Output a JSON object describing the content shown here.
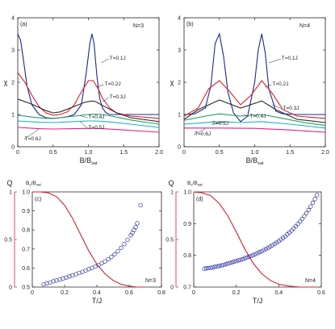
{
  "colors": {
    "T=0.1J": "#1a2a8c",
    "T=0.2J": "#e0202a",
    "T=0.3J": "#2a2a2a",
    "T=0.4J": "#1fa05a",
    "T=0.5J": "#18b0c8",
    "T=0.6J": "#e0208a",
    "Q": "#d42030",
    "circle": "#2a30a0",
    "axis": "#222222"
  },
  "chart_data": [
    {
      "type": "line",
      "panel": "(a)",
      "annotation": "N=3",
      "xlabel": "B/B",
      "xlabel_sub": "sat",
      "ylabel": "χ",
      "xlim": [
        0,
        2
      ],
      "ylim": [
        0,
        4
      ],
      "xticks": [
        "0",
        "0.5",
        "1.0",
        "1.5",
        "2.0"
      ],
      "yticks": [
        "0",
        "1",
        "2",
        "3",
        "4"
      ],
      "series": [
        {
          "name": "T=0.1J",
          "x": [
            0,
            0.04,
            0.08,
            0.13,
            0.2,
            0.3,
            0.4,
            0.5,
            0.6,
            0.7,
            0.8,
            0.9,
            0.97,
            1.02,
            1.05,
            1.08,
            1.12,
            1.16,
            1.2,
            1.25,
            1.3,
            1.4,
            1.6,
            2.0
          ],
          "y": [
            3.5,
            3.3,
            2.7,
            1.9,
            1.3,
            1.0,
            0.9,
            0.88,
            0.9,
            0.93,
            1.0,
            1.3,
            2.3,
            3.2,
            3.5,
            3.2,
            2.2,
            1.5,
            1.2,
            1.05,
            1.0,
            1.0,
            1.0,
            1.0
          ]
        },
        {
          "name": "T=0.2J",
          "x": [
            0,
            0.1,
            0.2,
            0.3,
            0.4,
            0.5,
            0.6,
            0.7,
            0.8,
            0.9,
            1.0,
            1.07,
            1.15,
            1.2,
            1.3,
            1.4,
            1.6,
            2.0
          ],
          "y": [
            2.3,
            2.0,
            1.6,
            1.25,
            1.05,
            0.98,
            1.0,
            1.08,
            1.3,
            1.7,
            2.05,
            2.05,
            1.75,
            1.5,
            1.2,
            1.05,
            0.95,
            0.88
          ]
        },
        {
          "name": "T=0.3J",
          "x": [
            0,
            0.2,
            0.4,
            0.5,
            0.6,
            0.8,
            0.95,
            1.05,
            1.1,
            1.2,
            1.4,
            1.6,
            2.0
          ],
          "y": [
            1.48,
            1.32,
            1.12,
            1.05,
            1.08,
            1.25,
            1.38,
            1.42,
            1.4,
            1.28,
            1.05,
            0.9,
            0.78
          ]
        },
        {
          "name": "T=0.4J",
          "x": [
            0,
            0.2,
            0.4,
            0.5,
            0.6,
            0.8,
            1.0,
            1.1,
            1.2,
            1.4,
            1.6,
            2.0
          ],
          "y": [
            0.98,
            0.92,
            0.88,
            0.88,
            0.9,
            0.95,
            1.0,
            1.01,
            1.0,
            0.92,
            0.83,
            0.7
          ]
        },
        {
          "name": "T=0.5J",
          "x": [
            0,
            0.3,
            0.5,
            0.8,
            1.0,
            1.1,
            1.3,
            1.6,
            2.0
          ],
          "y": [
            0.8,
            0.76,
            0.75,
            0.78,
            0.8,
            0.8,
            0.77,
            0.7,
            0.6
          ]
        },
        {
          "name": "T=0.6J",
          "x": [
            0,
            0.3,
            0.5,
            0.8,
            1.0,
            1.2,
            1.5,
            2.0
          ],
          "y": [
            0.6,
            0.56,
            0.55,
            0.56,
            0.57,
            0.56,
            0.52,
            0.45
          ]
        }
      ],
      "labels": [
        {
          "text": "T=0.1J",
          "x": 1.3,
          "y": 2.75,
          "ax": 1.18,
          "ay": 2.6
        },
        {
          "text": "T=0.2J",
          "x": 1.23,
          "y": 1.95,
          "ax": 1.12,
          "ay": 1.85
        },
        {
          "text": "T=0.3J",
          "x": 1.3,
          "y": 1.55,
          "ax": 1.2,
          "ay": 1.4
        },
        {
          "text": "T=0.4J",
          "x": 1.0,
          "y": 0.92,
          "ax": 0.88,
          "ay": 0.97
        },
        {
          "text": "T=0.5J",
          "x": 1.0,
          "y": 0.6,
          "ax": 0.88,
          "ay": 0.78
        },
        {
          "text": "T=0.6J",
          "x": 0.1,
          "y": 0.25,
          "ax": 0.3,
          "ay": 0.55
        }
      ]
    },
    {
      "type": "line",
      "panel": "(b)",
      "annotation": "N=4",
      "xlabel": "B/B",
      "xlabel_sub": "sat",
      "ylabel": "χ",
      "xlim": [
        0,
        2
      ],
      "ylim": [
        0,
        4
      ],
      "xticks": [
        "0",
        "0.5",
        "1.0",
        "1.5",
        "2.0"
      ],
      "yticks": [
        "0",
        "1",
        "2",
        "3",
        "4"
      ],
      "series": [
        {
          "name": "T=0.1J",
          "x": [
            0,
            0.15,
            0.3,
            0.38,
            0.44,
            0.5,
            0.56,
            0.62,
            0.7,
            0.8,
            0.9,
            1.0,
            1.05,
            1.1,
            1.15,
            1.2,
            1.3,
            1.4,
            1.6,
            2.0
          ],
          "y": [
            1.0,
            1.02,
            1.2,
            1.9,
            3.2,
            3.5,
            2.8,
            1.7,
            1.05,
            0.78,
            0.95,
            2.0,
            3.0,
            3.5,
            2.9,
            1.8,
            1.1,
            1.02,
            1.0,
            1.0
          ]
        },
        {
          "name": "T=0.2J",
          "x": [
            0,
            0.2,
            0.35,
            0.5,
            0.65,
            0.8,
            0.95,
            1.1,
            1.25,
            1.4,
            1.6,
            2.0
          ],
          "y": [
            0.95,
            1.2,
            1.8,
            2.05,
            1.7,
            1.3,
            1.6,
            2.05,
            1.65,
            1.15,
            0.95,
            0.88
          ]
        },
        {
          "name": "T=0.3J",
          "x": [
            0,
            0.2,
            0.5,
            0.8,
            1.1,
            1.3,
            1.6,
            2.0
          ],
          "y": [
            0.85,
            1.15,
            1.45,
            1.2,
            1.42,
            1.15,
            0.85,
            0.75
          ]
        },
        {
          "name": "T=0.4J",
          "x": [
            0,
            0.3,
            0.5,
            0.8,
            1.1,
            1.4,
            1.7,
            2.0
          ],
          "y": [
            0.82,
            0.95,
            1.02,
            0.95,
            1.0,
            0.88,
            0.75,
            0.66
          ]
        },
        {
          "name": "T=0.5J",
          "x": [
            0,
            0.5,
            0.8,
            1.1,
            1.5,
            2.0
          ],
          "y": [
            0.7,
            0.78,
            0.75,
            0.78,
            0.7,
            0.58
          ]
        },
        {
          "name": "T=0.6J",
          "x": [
            0,
            0.5,
            1.0,
            1.5,
            2.0
          ],
          "y": [
            0.58,
            0.58,
            0.57,
            0.52,
            0.45
          ]
        }
      ],
      "labels": [
        {
          "text": "T=0.1J",
          "x": 1.38,
          "y": 2.75,
          "ax": 1.2,
          "ay": 2.6
        },
        {
          "text": "T=0.2J",
          "x": 1.25,
          "y": 1.95,
          "ax": 1.14,
          "ay": 1.85
        },
        {
          "text": "T=0.3J",
          "x": 1.4,
          "y": 1.2,
          "ax": 1.25,
          "ay": 1.3
        },
        {
          "text": "T=0.4J",
          "x": 0.93,
          "y": 0.95,
          "ax": 0.85,
          "ay": 1.0
        },
        {
          "text": "T=0.5J",
          "x": 0.4,
          "y": 0.72,
          "ax": 0.6,
          "ay": 0.78
        },
        {
          "text": "T=0.6J",
          "x": 0.15,
          "y": 0.4,
          "ax": 0.3,
          "ay": 0.56
        }
      ]
    },
    {
      "type": "scatter",
      "panel": "(c)",
      "annotation": "N=3",
      "xlabel": "T/J",
      "ylabel_left": "Q",
      "ylabel_right": "B",
      "ylabel_right_sub1": "c",
      "ylabel_right_mid": "/B",
      "ylabel_right_sub2": "sat",
      "xlim": [
        0,
        0.8
      ],
      "ylim_right": [
        0.5,
        1.0
      ],
      "ylim_left": [
        0,
        1
      ],
      "xticks": [
        "0",
        "0.2",
        "0.4",
        "0.6",
        "0.8"
      ],
      "yticks_right": [
        "0.5",
        "0.6",
        "0.7",
        "0.8",
        "0.9",
        "1.0"
      ],
      "yticks_left": [
        "0",
        "0.5",
        "1"
      ],
      "Q_line": {
        "x": [
          0,
          0.05,
          0.1,
          0.15,
          0.2,
          0.25,
          0.3,
          0.35,
          0.4,
          0.45,
          0.5,
          0.55,
          0.6,
          0.65,
          0.7
        ],
        "y": [
          1.0,
          1.0,
          0.99,
          0.95,
          0.86,
          0.72,
          0.55,
          0.38,
          0.24,
          0.14,
          0.07,
          0.03,
          0.01,
          0.0,
          0.0
        ]
      },
      "Bc_points": {
        "x": [
          0.07,
          0.09,
          0.11,
          0.13,
          0.15,
          0.17,
          0.19,
          0.21,
          0.23,
          0.25,
          0.27,
          0.29,
          0.31,
          0.33,
          0.35,
          0.37,
          0.39,
          0.41,
          0.43,
          0.45,
          0.47,
          0.49,
          0.51,
          0.53,
          0.55,
          0.57,
          0.59,
          0.61,
          0.62,
          0.63,
          0.64,
          0.65,
          0.67
        ],
        "y": [
          0.515,
          0.52,
          0.525,
          0.53,
          0.535,
          0.54,
          0.545,
          0.55,
          0.556,
          0.562,
          0.568,
          0.574,
          0.58,
          0.587,
          0.594,
          0.601,
          0.608,
          0.616,
          0.625,
          0.635,
          0.646,
          0.658,
          0.672,
          0.688,
          0.706,
          0.726,
          0.748,
          0.772,
          0.785,
          0.8,
          0.815,
          0.835,
          0.93
        ]
      }
    },
    {
      "type": "scatter",
      "panel": "(d)",
      "annotation": "N=4",
      "xlabel": "T/J",
      "ylabel_left": "Q",
      "ylabel_right": "B",
      "ylabel_right_sub1": "c",
      "ylabel_right_mid": "/B",
      "ylabel_right_sub2": "sat",
      "xlim": [
        0,
        0.6
      ],
      "ylim_right": [
        0.7,
        1.0
      ],
      "ylim_left": [
        0,
        1
      ],
      "xticks": [
        "0",
        "0.2",
        "0.4",
        "0.6"
      ],
      "yticks_right": [
        "0.7",
        "0.8",
        "0.9",
        "1.0"
      ],
      "yticks_left": [
        "0",
        "0.5",
        "1"
      ],
      "Q_line": {
        "x": [
          0,
          0.04,
          0.08,
          0.12,
          0.16,
          0.2,
          0.24,
          0.28,
          0.32,
          0.36,
          0.4,
          0.45,
          0.5,
          0.55,
          0.58
        ],
        "y": [
          1.0,
          0.99,
          0.96,
          0.88,
          0.75,
          0.58,
          0.4,
          0.25,
          0.14,
          0.07,
          0.03,
          0.01,
          0.0,
          0.0,
          0.0
        ]
      },
      "Bc_points": {
        "x": [
          0.05,
          0.06,
          0.07,
          0.08,
          0.09,
          0.1,
          0.11,
          0.12,
          0.13,
          0.14,
          0.15,
          0.16,
          0.17,
          0.18,
          0.19,
          0.2,
          0.21,
          0.22,
          0.23,
          0.24,
          0.25,
          0.26,
          0.27,
          0.28,
          0.29,
          0.3,
          0.31,
          0.32,
          0.33,
          0.34,
          0.35,
          0.36,
          0.37,
          0.38,
          0.39,
          0.4,
          0.41,
          0.42,
          0.43,
          0.44,
          0.45,
          0.46,
          0.47,
          0.48,
          0.49,
          0.5,
          0.51,
          0.52,
          0.53,
          0.54,
          0.55,
          0.56,
          0.57,
          0.58
        ],
        "y": [
          0.758,
          0.759,
          0.76,
          0.761,
          0.762,
          0.764,
          0.765,
          0.767,
          0.768,
          0.77,
          0.772,
          0.774,
          0.776,
          0.778,
          0.78,
          0.782,
          0.784,
          0.786,
          0.788,
          0.791,
          0.793,
          0.796,
          0.798,
          0.801,
          0.804,
          0.807,
          0.81,
          0.813,
          0.817,
          0.82,
          0.824,
          0.828,
          0.832,
          0.836,
          0.84,
          0.845,
          0.85,
          0.855,
          0.86,
          0.866,
          0.872,
          0.878,
          0.885,
          0.892,
          0.899,
          0.907,
          0.915,
          0.924,
          0.933,
          0.943,
          0.954,
          0.966,
          0.978,
          0.99
        ]
      }
    }
  ]
}
